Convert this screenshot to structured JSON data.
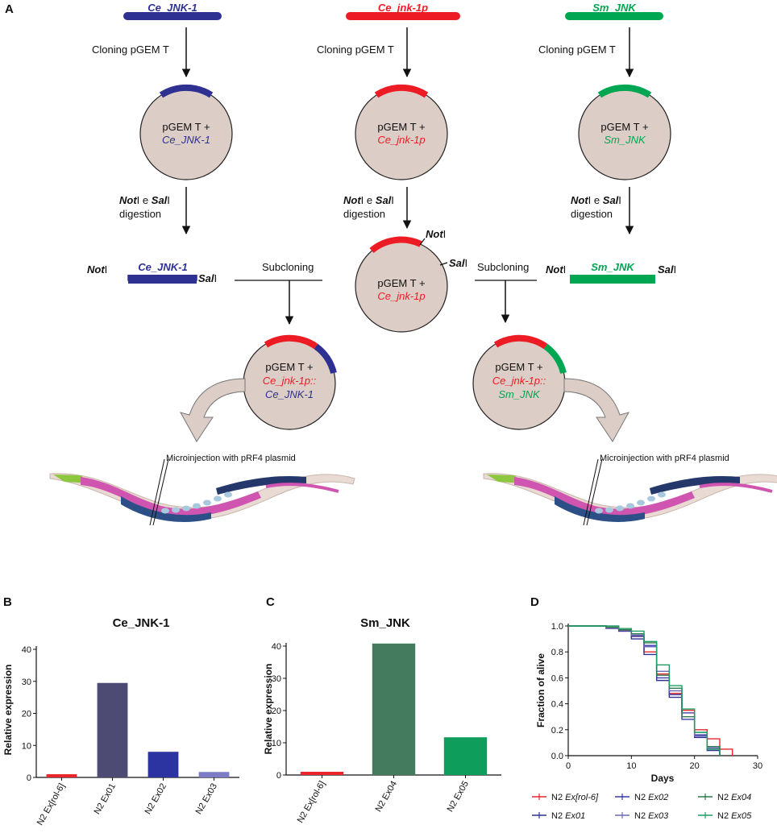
{
  "colors": {
    "blue": "#2e3192",
    "red": "#ed1c24",
    "green": "#00a651",
    "plasmid_fill": "#dccdc6",
    "bar_rol6": "#e8262b",
    "bar_ex01": "#4d4a73",
    "bar_ex02": "#2b34a0",
    "bar_ex03": "#7c7cc6",
    "bar_ex04": "#447b5e",
    "bar_ex05": "#0f9d5c"
  },
  "panel_a": {
    "panel_label": "A",
    "genes": {
      "left": "Ce_JNK-1",
      "mid": "Ce_jnk-1p",
      "right": "Sm_JNK"
    },
    "cloning_label": "Cloning pGEM T",
    "plasmid_prefix": "pGEM T +",
    "digestion": {
      "enzyme1": "Not",
      "enzyme2": "Sal",
      "roman": "I",
      "conj": "e",
      "word": "digestion"
    },
    "site_left": "NotI",
    "site_right": "SalI",
    "subcloning_label": "Subcloning",
    "fusion_promoter": "Ce_jnk-1p::",
    "microinjection_label": "Microinjection with pRF4 plasmid"
  },
  "panel_b": {
    "panel_label": "B",
    "chart_data": {
      "type": "bar",
      "title": "Ce_JNK-1",
      "categories": [
        "N2 Ex[rol-6]",
        "N2 Ex01",
        "N2 Ex02",
        "N2 Ex03"
      ],
      "values": [
        1,
        29.5,
        8,
        1.7
      ],
      "ylabel": "Relative expression",
      "ylim": [
        0,
        40
      ],
      "yticks": [
        0,
        10,
        20,
        30,
        40
      ]
    }
  },
  "panel_c": {
    "panel_label": "C",
    "chart_data": {
      "type": "bar",
      "title": "Sm_JNK",
      "categories": [
        "N2 Ex[rol-6]",
        "N2 Ex04",
        "N2 Ex05"
      ],
      "values": [
        1,
        40.8,
        11.7
      ],
      "ylabel": "Relative expression",
      "ylim": [
        0,
        40
      ],
      "yticks": [
        0,
        10,
        20,
        30,
        40
      ]
    }
  },
  "panel_d": {
    "panel_label": "D",
    "chart_data": {
      "type": "line",
      "xlabel": "Days",
      "ylabel": "Fraction of alive",
      "xlim": [
        0,
        30
      ],
      "ylim": [
        0,
        1
      ],
      "xticks": [
        0,
        10,
        20,
        30
      ],
      "yticks": [
        "0.0",
        "0.2",
        "0.4",
        "0.6",
        "0.8",
        "1.0"
      ],
      "series": [
        {
          "name": "N2 Ex[rol-6]",
          "color": "#e8262b",
          "steps": [
            [
              0,
              1
            ],
            [
              4,
              1
            ],
            [
              6,
              0.99
            ],
            [
              8,
              0.96
            ],
            [
              10,
              0.92
            ],
            [
              12,
              0.8
            ],
            [
              14,
              0.63
            ],
            [
              16,
              0.48
            ],
            [
              18,
              0.35
            ],
            [
              20,
              0.2
            ],
            [
              22,
              0.13
            ],
            [
              24,
              0.05
            ],
            [
              26,
              0
            ]
          ]
        },
        {
          "name": "N2 Ex01",
          "color": "#2e3192",
          "steps": [
            [
              0,
              1
            ],
            [
              4,
              1
            ],
            [
              6,
              0.99
            ],
            [
              8,
              0.97
            ],
            [
              10,
              0.9
            ],
            [
              12,
              0.78
            ],
            [
              14,
              0.58
            ],
            [
              16,
              0.45
            ],
            [
              18,
              0.33
            ],
            [
              20,
              0.14
            ],
            [
              22,
              0.04
            ],
            [
              24,
              0
            ]
          ]
        },
        {
          "name": "N2 Ex02",
          "color": "#3a3aa8",
          "steps": [
            [
              0,
              1
            ],
            [
              4,
              1
            ],
            [
              6,
              0.98
            ],
            [
              8,
              0.96
            ],
            [
              10,
              0.92
            ],
            [
              12,
              0.85
            ],
            [
              14,
              0.6
            ],
            [
              16,
              0.47
            ],
            [
              18,
              0.28
            ],
            [
              20,
              0.16
            ],
            [
              22,
              0.05
            ],
            [
              24,
              0
            ]
          ]
        },
        {
          "name": "N2 Ex03",
          "color": "#6e6ab8",
          "steps": [
            [
              0,
              1
            ],
            [
              4,
              1
            ],
            [
              6,
              0.98
            ],
            [
              8,
              0.97
            ],
            [
              10,
              0.93
            ],
            [
              12,
              0.84
            ],
            [
              14,
              0.65
            ],
            [
              16,
              0.5
            ],
            [
              18,
              0.33
            ],
            [
              20,
              0.15
            ],
            [
              22,
              0.06
            ],
            [
              24,
              0
            ]
          ]
        },
        {
          "name": "N2 Ex04",
          "color": "#2d7a4c",
          "steps": [
            [
              0,
              1
            ],
            [
              4,
              1
            ],
            [
              6,
              0.99
            ],
            [
              8,
              0.97
            ],
            [
              10,
              0.94
            ],
            [
              12,
              0.87
            ],
            [
              14,
              0.62
            ],
            [
              16,
              0.52
            ],
            [
              18,
              0.3
            ],
            [
              20,
              0.18
            ],
            [
              22,
              0.07
            ],
            [
              24,
              0
            ]
          ]
        },
        {
          "name": "N2 Ex05",
          "color": "#1f9e63",
          "steps": [
            [
              0,
              1
            ],
            [
              4,
              1
            ],
            [
              6,
              1
            ],
            [
              8,
              0.98
            ],
            [
              10,
              0.96
            ],
            [
              12,
              0.88
            ],
            [
              14,
              0.7
            ],
            [
              16,
              0.54
            ],
            [
              18,
              0.36
            ],
            [
              20,
              0.18
            ],
            [
              22,
              0.05
            ],
            [
              24,
              0
            ]
          ]
        }
      ],
      "legend": {
        "placement": "bottom",
        "entries": [
          {
            "prefix": "N2 ",
            "suffix": "Ex[rol-6]",
            "color": "#e8262b"
          },
          {
            "prefix": "N2 ",
            "suffix": "Ex02",
            "color": "#3a3aa8"
          },
          {
            "prefix": "N2 ",
            "suffix": "Ex04",
            "color": "#2d7a4c"
          },
          {
            "prefix": "N2 ",
            "suffix": "Ex01",
            "color": "#2e3192"
          },
          {
            "prefix": "N2 ",
            "suffix": "Ex03",
            "color": "#6e6ab8"
          },
          {
            "prefix": "N2 ",
            "suffix": "Ex05",
            "color": "#1f9e63"
          }
        ]
      }
    }
  }
}
